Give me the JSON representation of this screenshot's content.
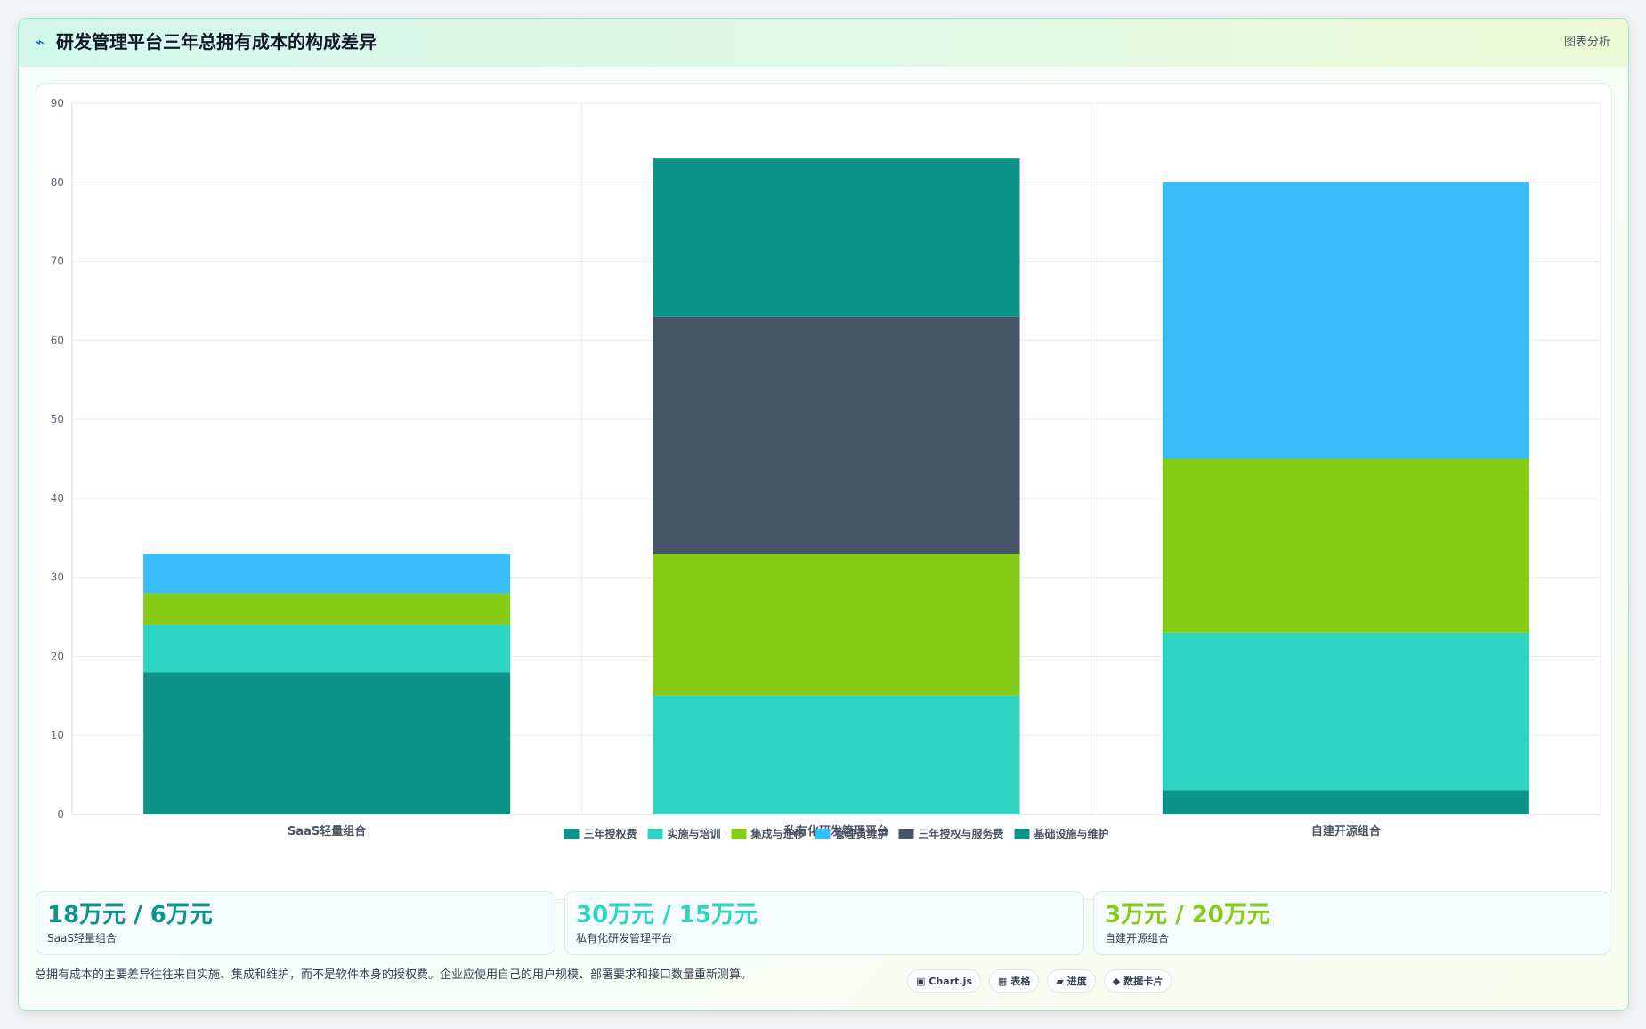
{
  "header": {
    "icon": "chart-trend-icon",
    "title": "研发管理平台三年总拥有成本的构成差异",
    "tag": "图表分析"
  },
  "chart_data": {
    "type": "bar",
    "stacked": true,
    "categories": [
      "SaaS轻量组合",
      "私有化研发管理平台",
      "自建开源组合"
    ],
    "ylim": [
      0,
      90
    ],
    "yticks": [
      0,
      10,
      20,
      30,
      40,
      50,
      60,
      70,
      80,
      90
    ],
    "grid": true,
    "legend_position": "bottom",
    "series": [
      {
        "name": "三年授权费",
        "color": "#0d9488",
        "values": [
          18,
          0,
          3
        ]
      },
      {
        "name": "实施与培训",
        "color": "#2dd4bf",
        "values": [
          6,
          15,
          20
        ]
      },
      {
        "name": "集成与迁移",
        "color": "#84cc16",
        "values": [
          4,
          18,
          22
        ]
      },
      {
        "name": "管理员维护",
        "color": "#38bdf8",
        "values": [
          5,
          0,
          35
        ]
      },
      {
        "name": "三年授权与服务费",
        "color": "#475569",
        "values": [
          0,
          30,
          0
        ]
      },
      {
        "name": "基础设施与维护",
        "color": "#0d9488",
        "values": [
          0,
          20,
          0
        ]
      }
    ]
  },
  "stats": [
    {
      "value": "18万元 / 6万元",
      "label": "SaaS轻量组合",
      "color": "#0d9488"
    },
    {
      "value": "30万元 / 15万元",
      "label": "私有化研发管理平台",
      "color": "#2dd4bf"
    },
    {
      "value": "3万元 / 20万元",
      "label": "自建开源组合",
      "color": "#84cc16"
    }
  ],
  "footnote": "总拥有成本的主要差异往往来自实施、集成和维护，而不是软件本身的授权费。企业应使用自己的用户规模、部署要求和接口数量重新测算。",
  "chips": [
    {
      "icon": "▣",
      "label": "Chart.js",
      "icon_name": "chart-icon"
    },
    {
      "icon": "▦",
      "label": "表格",
      "icon_name": "table-icon"
    },
    {
      "icon": "▰",
      "label": "进度",
      "icon_name": "progress-icon"
    },
    {
      "icon": "◆",
      "label": "数据卡片",
      "icon_name": "data-card-icon"
    }
  ]
}
